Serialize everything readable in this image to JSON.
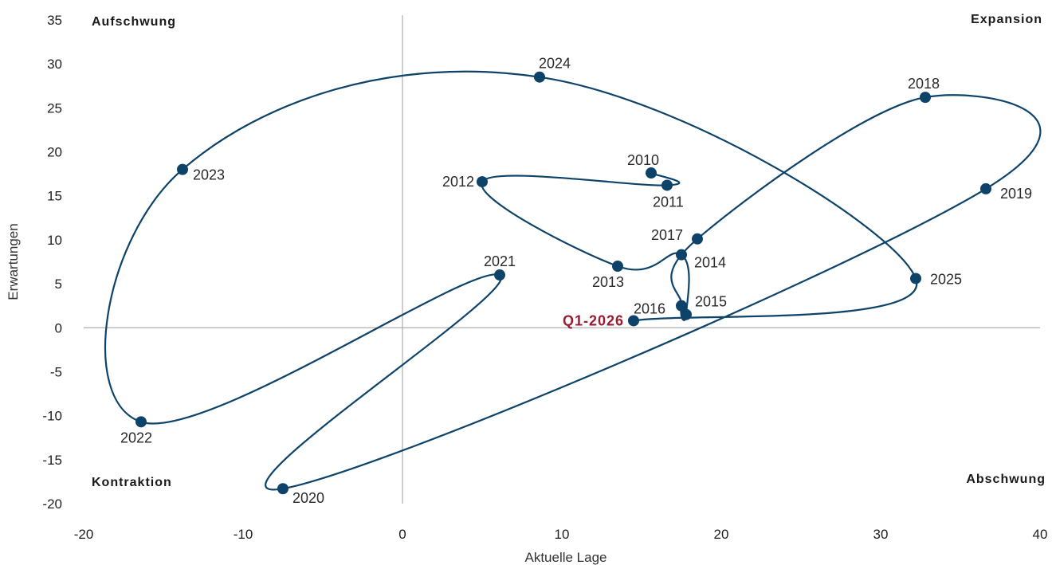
{
  "chart_data": {
    "type": "scatter",
    "xlabel": "Aktuelle Lage",
    "ylabel": "Erwartungen",
    "xlim": [
      -20,
      40
    ],
    "ylim": [
      -20,
      35
    ],
    "x_ticks": [
      "-20",
      "-10",
      "0",
      "10",
      "20",
      "30",
      "40"
    ],
    "y_ticks": [
      "35",
      "30",
      "25",
      "20",
      "15",
      "10",
      "5",
      "0",
      "-5",
      "-10",
      "-15",
      "-20"
    ],
    "quadrants": {
      "top_left": "Aufschwung",
      "top_right": "Expansion",
      "bottom_left": "Kontraktion",
      "bottom_right": "Abschwung"
    },
    "points": [
      {
        "label": "2010",
        "x": 15.6,
        "y": 17.6
      },
      {
        "label": "2011",
        "x": 16.6,
        "y": 16.2
      },
      {
        "label": "2012",
        "x": 5.0,
        "y": 16.6
      },
      {
        "label": "2013",
        "x": 13.5,
        "y": 7.0
      },
      {
        "label": "2014",
        "x": 17.5,
        "y": 8.3
      },
      {
        "label": "2015",
        "x": 17.8,
        "y": 1.5
      },
      {
        "label": "2016",
        "x": 17.5,
        "y": 2.5
      },
      {
        "label": "2017",
        "x": 18.5,
        "y": 10.1
      },
      {
        "label": "2018",
        "x": 32.8,
        "y": 26.2
      },
      {
        "label": "2019",
        "x": 36.6,
        "y": 15.8
      },
      {
        "label": "2020",
        "x": -7.5,
        "y": -18.3
      },
      {
        "label": "2021",
        "x": 6.1,
        "y": 6.0
      },
      {
        "label": "2022",
        "x": -16.4,
        "y": -10.7
      },
      {
        "label": "2023",
        "x": -13.8,
        "y": 18.0
      },
      {
        "label": "2024",
        "x": 8.6,
        "y": 28.5
      },
      {
        "label": "2025",
        "x": 32.2,
        "y": 5.6
      },
      {
        "label": "Q1-2026",
        "x": 14.5,
        "y": 0.8,
        "highlight": true
      }
    ],
    "grid": false,
    "colors": {
      "series": "#0e4369",
      "highlight_label": "#9b1b30",
      "zero_lines": "#9e9e9e"
    }
  }
}
